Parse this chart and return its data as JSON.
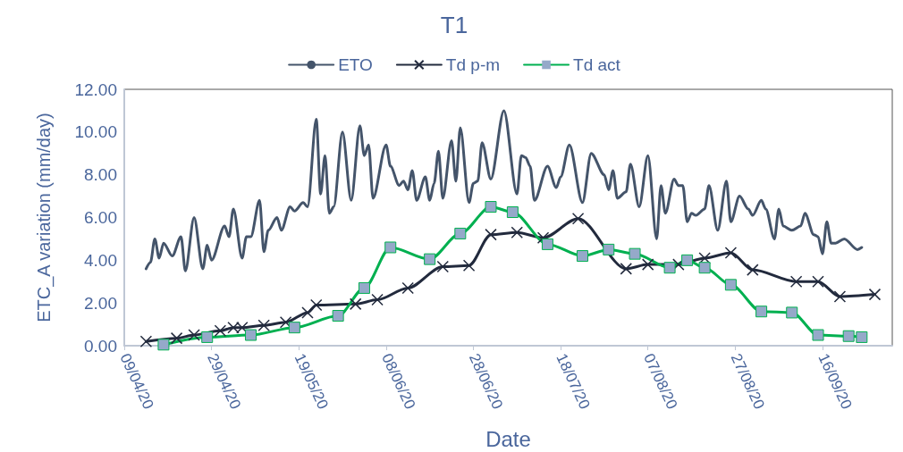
{
  "chart_data": {
    "type": "line",
    "title": "T1",
    "xlabel": "Date",
    "ylabel": "ETC_A variation (mm/day)",
    "xlim": [
      "2020-04-09",
      "2020-10-02"
    ],
    "xticks": [
      {
        "value": "2020-04-09",
        "label": "09/04/20"
      },
      {
        "value": "2020-04-29",
        "label": "29/04/20"
      },
      {
        "value": "2020-05-19",
        "label": "19/05/20"
      },
      {
        "value": "2020-06-08",
        "label": "08/06/20"
      },
      {
        "value": "2020-06-28",
        "label": "28/06/20"
      },
      {
        "value": "2020-07-18",
        "label": "18/07/20"
      },
      {
        "value": "2020-08-07",
        "label": "07/08/20"
      },
      {
        "value": "2020-08-27",
        "label": "27/08/20"
      },
      {
        "value": "2020-09-16",
        "label": "16/09/20"
      }
    ],
    "ylim": [
      0,
      12
    ],
    "yticks": [
      {
        "value": 0,
        "label": "0.00"
      },
      {
        "value": 2,
        "label": "2.00"
      },
      {
        "value": 4,
        "label": "4.00"
      },
      {
        "value": 6,
        "label": "6.00"
      },
      {
        "value": 8,
        "label": "8.00"
      },
      {
        "value": 10,
        "label": "10.00"
      },
      {
        "value": 12,
        "label": "12.00"
      }
    ],
    "grid": false,
    "legend": "top",
    "line_style": "solid",
    "series": [
      {
        "name": "ETO",
        "color": "#44546a",
        "marker": "none",
        "x": [
          "2020-04-14",
          "2020-04-15",
          "2020-04-16",
          "2020-04-17",
          "2020-04-18",
          "2020-04-20",
          "2020-04-22",
          "2020-04-23",
          "2020-04-25",
          "2020-04-27",
          "2020-04-28",
          "2020-04-29",
          "2020-05-02",
          "2020-05-03",
          "2020-05-04",
          "2020-05-06",
          "2020-05-07",
          "2020-05-08",
          "2020-05-10",
          "2020-05-11",
          "2020-05-12",
          "2020-05-14",
          "2020-05-15",
          "2020-05-17",
          "2020-05-18",
          "2020-05-20",
          "2020-05-21",
          "2020-05-23",
          "2020-05-24",
          "2020-05-25",
          "2020-05-26",
          "2020-05-27",
          "2020-05-29",
          "2020-05-31",
          "2020-06-02",
          "2020-06-03",
          "2020-06-04",
          "2020-06-05",
          "2020-06-08",
          "2020-06-09",
          "2020-06-11",
          "2020-06-12",
          "2020-06-13",
          "2020-06-14",
          "2020-06-15",
          "2020-06-17",
          "2020-06-18",
          "2020-06-19",
          "2020-06-20",
          "2020-06-21",
          "2020-06-23",
          "2020-06-24",
          "2020-06-25",
          "2020-06-27",
          "2020-06-28",
          "2020-06-29",
          "2020-06-30",
          "2020-07-02",
          "2020-07-05",
          "2020-07-08",
          "2020-07-09",
          "2020-07-10",
          "2020-07-11",
          "2020-07-12",
          "2020-07-15",
          "2020-07-17",
          "2020-07-18",
          "2020-07-20",
          "2020-07-23",
          "2020-07-25",
          "2020-07-28",
          "2020-07-29",
          "2020-07-30",
          "2020-07-31",
          "2020-08-02",
          "2020-08-03",
          "2020-08-05",
          "2020-08-07",
          "2020-08-09",
          "2020-08-10",
          "2020-08-11",
          "2020-08-13",
          "2020-08-14",
          "2020-08-15",
          "2020-08-16",
          "2020-08-17",
          "2020-08-18",
          "2020-08-20",
          "2020-08-21",
          "2020-08-23",
          "2020-08-25",
          "2020-08-26",
          "2020-08-28",
          "2020-08-30",
          "2020-08-31",
          "2020-09-02",
          "2020-09-03",
          "2020-09-05",
          "2020-09-06",
          "2020-09-07",
          "2020-09-09",
          "2020-09-11",
          "2020-09-12",
          "2020-09-14",
          "2020-09-15",
          "2020-09-16",
          "2020-09-17",
          "2020-09-18",
          "2020-09-19",
          "2020-09-21",
          "2020-09-24",
          "2020-09-25"
        ],
        "values": [
          3.6,
          3.9,
          5.0,
          4.1,
          4.8,
          4.2,
          5.1,
          3.5,
          6.0,
          3.6,
          4.7,
          4.0,
          5.6,
          5.1,
          6.4,
          4.1,
          5.1,
          5.1,
          6.8,
          4.4,
          5.4,
          6.0,
          5.4,
          6.5,
          6.3,
          6.7,
          6.5,
          10.6,
          7.1,
          8.9,
          6.2,
          6.5,
          10.0,
          6.8,
          10.3,
          8.9,
          9.4,
          6.9,
          9.4,
          8.4,
          7.5,
          7.7,
          7.3,
          8.2,
          6.8,
          7.9,
          6.8,
          7.6,
          9.1,
          6.9,
          9.6,
          7.7,
          10.2,
          6.7,
          7.6,
          7.7,
          9.5,
          7.8,
          11.0,
          7.1,
          8.9,
          8.8,
          8.4,
          6.8,
          8.4,
          7.4,
          7.9,
          9.4,
          6.7,
          9.0,
          8.0,
          7.3,
          8.2,
          6.9,
          7.2,
          8.5,
          6.5,
          8.9,
          5.0,
          7.5,
          6.2,
          7.8,
          7.5,
          7.5,
          5.8,
          6.2,
          6.1,
          6.4,
          7.5,
          5.4,
          7.7,
          5.8,
          7.0,
          6.4,
          6.1,
          6.8,
          6.4,
          5.0,
          6.4,
          5.6,
          5.4,
          5.6,
          6.2,
          5.2,
          5.1,
          4.3,
          5.8,
          4.8,
          4.8,
          5.0,
          4.5,
          4.6
        ]
      },
      {
        "name": "Td p-m",
        "color": "#222a3d",
        "marker": "cross",
        "x": [
          "2020-04-14",
          "2020-04-21",
          "2020-04-25",
          "2020-05-01",
          "2020-05-04",
          "2020-05-06",
          "2020-05-11",
          "2020-05-16",
          "2020-05-21",
          "2020-05-23",
          "2020-06-01",
          "2020-06-06",
          "2020-06-13",
          "2020-06-21",
          "2020-06-27",
          "2020-07-02",
          "2020-07-08",
          "2020-07-14",
          "2020-07-22",
          "2020-08-02",
          "2020-08-07",
          "2020-08-14",
          "2020-08-20",
          "2020-08-26",
          "2020-08-31",
          "2020-09-10",
          "2020-09-15",
          "2020-09-20",
          "2020-09-28"
        ],
        "values": [
          0.2,
          0.35,
          0.5,
          0.7,
          0.85,
          0.85,
          0.95,
          1.1,
          1.55,
          1.9,
          1.95,
          2.15,
          2.7,
          3.7,
          3.75,
          5.2,
          5.3,
          5.05,
          5.95,
          3.6,
          3.8,
          3.8,
          4.1,
          4.35,
          3.55,
          3.0,
          3.0,
          2.3,
          2.4
        ]
      },
      {
        "name": "Td act",
        "color": "#00b050",
        "marker": "square",
        "x": [
          "2020-04-18",
          "2020-04-28",
          "2020-05-08",
          "2020-05-18",
          "2020-05-28",
          "2020-06-03",
          "2020-06-09",
          "2020-06-18",
          "2020-06-25",
          "2020-07-02",
          "2020-07-07",
          "2020-07-15",
          "2020-07-23",
          "2020-07-29",
          "2020-08-04",
          "2020-08-12",
          "2020-08-16",
          "2020-08-20",
          "2020-08-26",
          "2020-09-02",
          "2020-09-09",
          "2020-09-15",
          "2020-09-22",
          "2020-09-25"
        ],
        "values": [
          0.05,
          0.4,
          0.5,
          0.85,
          1.4,
          2.7,
          4.6,
          4.05,
          5.25,
          6.5,
          6.25,
          4.75,
          4.2,
          4.5,
          4.3,
          3.65,
          4.0,
          3.65,
          2.85,
          1.6,
          1.55,
          0.5,
          0.45,
          0.4
        ]
      }
    ]
  }
}
